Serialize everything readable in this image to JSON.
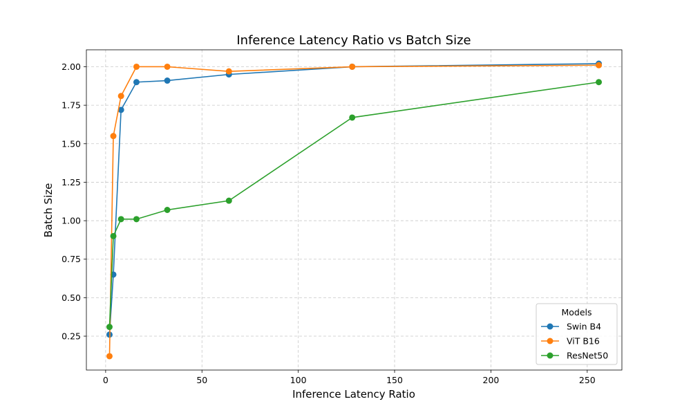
{
  "chart_data": {
    "type": "line",
    "title": "Inference Latency Ratio vs Batch Size",
    "xlabel": "Inference Latency Ratio",
    "ylabel": "Batch Size",
    "xlim": [
      -10,
      268
    ],
    "ylim": [
      0.03,
      2.11
    ],
    "x_ticks": [
      0,
      50,
      100,
      150,
      200,
      250
    ],
    "y_ticks": [
      0.25,
      0.5,
      0.75,
      1.0,
      1.25,
      1.5,
      1.75,
      2.0
    ],
    "grid": true,
    "legend": {
      "title": "Models",
      "placement": "bottom-right"
    },
    "series": [
      {
        "name": "Swin B4",
        "color": "#1f77b4",
        "x": [
          2,
          4,
          8,
          16,
          32,
          64,
          128,
          256
        ],
        "y": [
          0.26,
          0.65,
          1.72,
          1.9,
          1.91,
          1.95,
          2.0,
          2.02
        ]
      },
      {
        "name": "ViT B16",
        "color": "#ff7f0e",
        "x": [
          2,
          4,
          8,
          16,
          32,
          64,
          128,
          256
        ],
        "y": [
          0.12,
          1.55,
          1.81,
          2.0,
          2.0,
          1.97,
          2.0,
          2.01
        ]
      },
      {
        "name": "ResNet50",
        "color": "#2ca02c",
        "x": [
          2,
          4,
          8,
          16,
          32,
          64,
          128,
          256
        ],
        "y": [
          0.31,
          0.9,
          1.01,
          1.01,
          1.07,
          1.13,
          1.67,
          1.9
        ]
      }
    ]
  }
}
